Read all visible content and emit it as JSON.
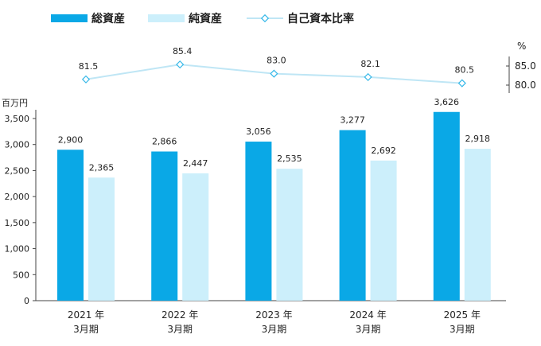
{
  "chart_data": {
    "type": "bar",
    "categories": [
      {
        "year": "2021 年",
        "period": "3月期"
      },
      {
        "year": "2022 年",
        "period": "3月期"
      },
      {
        "year": "2023 年",
        "period": "3月期"
      },
      {
        "year": "2024 年",
        "period": "3月期"
      },
      {
        "year": "2025 年",
        "period": "3月期"
      }
    ],
    "series": [
      {
        "name": "総資産",
        "color": "#0aa8e6",
        "values": [
          2900,
          2866,
          3056,
          3277,
          3626
        ],
        "labels": [
          "2,900",
          "2,866",
          "3,056",
          "3,277",
          "3,626"
        ]
      },
      {
        "name": "純資産",
        "color": "#cceffb",
        "values": [
          2365,
          2447,
          2535,
          2692,
          2918
        ],
        "labels": [
          "2,365",
          "2,447",
          "2,535",
          "2,692",
          "2,918"
        ]
      }
    ],
    "line_series": {
      "name": "自己資本比率",
      "color": "#bfe6f5",
      "marker_color": "#36b8e8",
      "values": [
        81.5,
        85.4,
        83.0,
        82.1,
        80.5
      ],
      "labels": [
        "81.5",
        "85.4",
        "83.0",
        "82.1",
        "80.5"
      ]
    },
    "y_unit": "百万円",
    "ylim": [
      0,
      3500
    ],
    "y_ticks": [
      "0",
      "500",
      "1,000",
      "1,500",
      "2,000",
      "2,500",
      "3,000",
      "3,500"
    ],
    "y_tick_values": [
      0,
      500,
      1000,
      1500,
      2000,
      2500,
      3000,
      3500
    ],
    "y2_unit": "%",
    "y2_ticks": [
      "85.0",
      "80.0"
    ],
    "y2_tick_values": [
      85.0,
      80.0
    ],
    "legend_position": "top-left"
  }
}
